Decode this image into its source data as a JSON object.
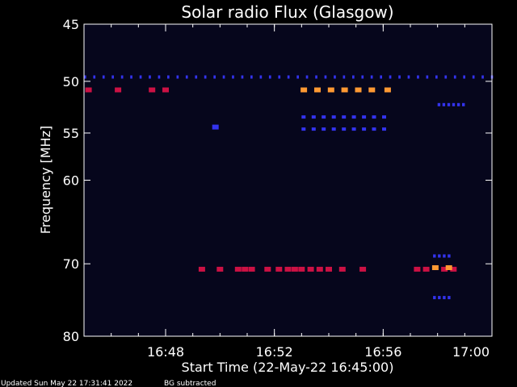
{
  "chart_data": {
    "type": "heatmap",
    "title": "Solar radio Flux (Glasgow)",
    "ylabel": "Frequency [MHz]",
    "xlabel": "Start Time (22-May-22 16:45:00)",
    "y_scale": "log",
    "ylim": [
      45,
      80
    ],
    "y_ticks": [
      45,
      50,
      55,
      60,
      70,
      80
    ],
    "x_start": "16:45",
    "x_end": "17:00",
    "x_ticks": [
      "16:48",
      "16:52",
      "16:56",
      "17:00"
    ],
    "background_color": "#06061c",
    "colors": {
      "frame": "#ffffff",
      "high": "#ff9933",
      "medium": "#cc1144",
      "low": "#3333ee"
    },
    "features": [
      {
        "kind": "dashed",
        "level": "low",
        "freq_mhz": 49.6,
        "t_start": "16:45",
        "t_end": "17:00",
        "mark_min": 0.08,
        "gap_min": 0.26
      },
      {
        "kind": "marks",
        "level": "medium",
        "freq_mhz": 50.8,
        "times": [
          "16:45:10",
          "16:46:15",
          "16:47:30",
          "16:48:00"
        ]
      },
      {
        "kind": "marks",
        "level": "high",
        "freq_mhz": 50.8,
        "times": [
          "16:53:05",
          "16:53:35",
          "16:54:05",
          "16:54:35",
          "16:55:05",
          "16:55:35",
          "16:56:10"
        ]
      },
      {
        "kind": "dashed",
        "level": "low",
        "freq_mhz": 53.4,
        "t_start": "16:53",
        "t_end": "16:56",
        "mark_min": 0.15,
        "gap_min": 0.22
      },
      {
        "kind": "dashed",
        "level": "low",
        "freq_mhz": 54.6,
        "t_start": "16:53",
        "t_end": "16:56",
        "mark_min": 0.15,
        "gap_min": 0.22
      },
      {
        "kind": "dashed",
        "level": "low",
        "freq_mhz": 52.2,
        "t_start": "16:58",
        "t_end": "16:59",
        "mark_min": 0.1,
        "gap_min": 0.08
      },
      {
        "kind": "marks",
        "level": "low",
        "freq_mhz": 54.4,
        "times": [
          "16:49:50"
        ]
      },
      {
        "kind": "marks",
        "level": "medium",
        "freq_mhz": 70.7,
        "times": [
          "16:49:20",
          "16:50:00",
          "16:50:40",
          "16:50:55",
          "16:51:10",
          "16:51:45",
          "16:52:10",
          "16:52:30",
          "16:52:45",
          "16:53:00",
          "16:53:20",
          "16:53:40",
          "16:54:00",
          "16:54:30",
          "16:55:15",
          "16:57:15",
          "16:57:35",
          "16:58:15",
          "16:58:35"
        ]
      },
      {
        "kind": "marks",
        "level": "high",
        "freq_mhz": 70.5,
        "times": [
          "16:57:55",
          "16:58:25"
        ]
      },
      {
        "kind": "dashed",
        "level": "low",
        "freq_mhz": 69.0,
        "t_start": "16:57:50",
        "t_end": "16:58:30",
        "mark_min": 0.1,
        "gap_min": 0.08
      },
      {
        "kind": "dashed",
        "level": "low",
        "freq_mhz": 74.5,
        "t_start": "16:57:50",
        "t_end": "16:58:30",
        "mark_min": 0.1,
        "gap_min": 0.08
      }
    ]
  },
  "footer": {
    "updated": "Updated Sun May 22 17:31:41 2022",
    "note": "BG subtracted"
  }
}
